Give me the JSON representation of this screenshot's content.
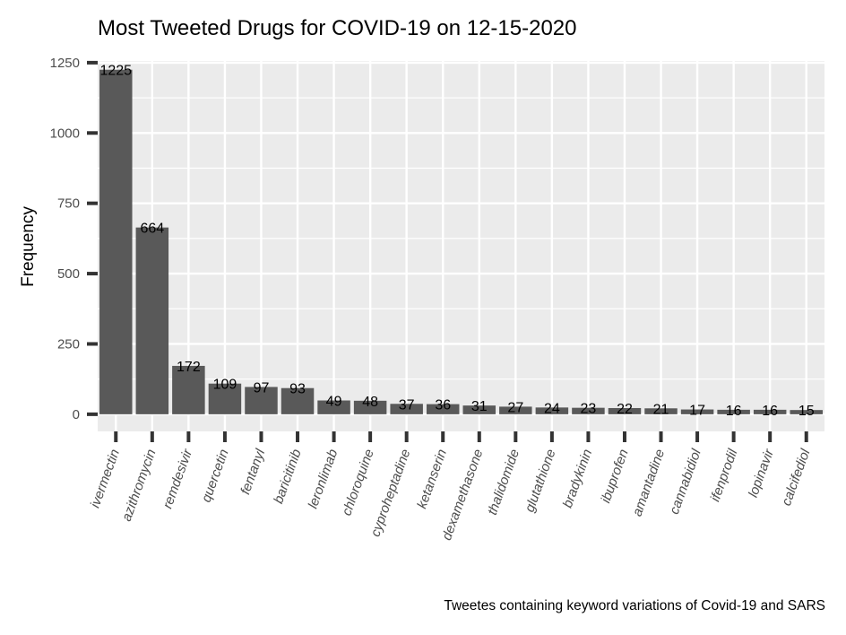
{
  "chart_data": {
    "type": "bar",
    "title": "Most Tweeted Drugs for COVID-19 on 12-15-2020",
    "ylabel": "Frequency",
    "xlabel": "",
    "caption": "Tweetes containing keyword variations of Covid-19 and SARS",
    "categories": [
      "ivermectin",
      "azithromycin",
      "remdesivir",
      "quercetin",
      "fentanyl",
      "baricitinib",
      "leronlimab",
      "chloroquine",
      "cyproheptadine",
      "ketanserin",
      "dexamethasone",
      "thalidomide",
      "glutathione",
      "bradykinin",
      "ibuprofen",
      "amantadine",
      "cannabidiol",
      "ifenprodil",
      "lopinavir",
      "calcifediol"
    ],
    "values": [
      1225,
      664,
      172,
      109,
      97,
      93,
      49,
      48,
      37,
      36,
      31,
      27,
      24,
      23,
      22,
      21,
      17,
      16,
      16,
      15
    ],
    "y_ticks": [
      0,
      250,
      500,
      750,
      1000,
      1250
    ],
    "ylim": [
      -61,
      1256
    ],
    "grid": true,
    "legend": "none",
    "colors": {
      "bar": "#595959",
      "panel": "#ebebeb",
      "grid": "#ffffff",
      "axis_text": "#4d4d4d",
      "tick": "#333333",
      "label": "#000000"
    }
  }
}
